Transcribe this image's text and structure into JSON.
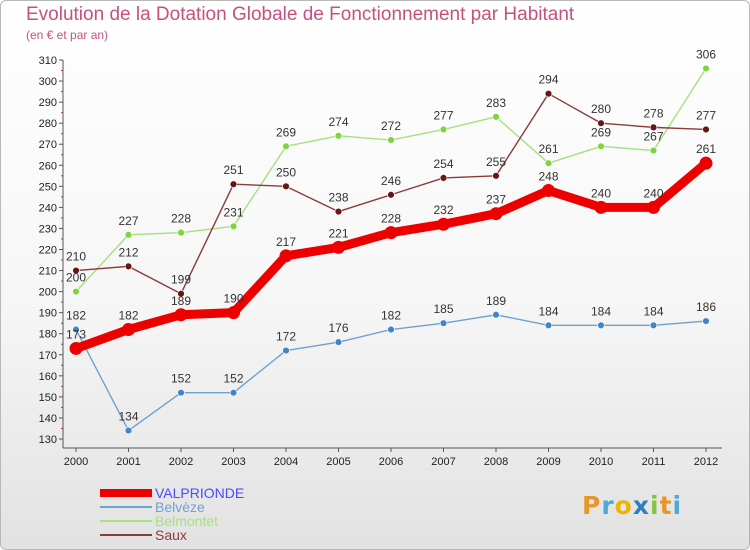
{
  "title": "Evolution de la Dotation Globale de Fonctionnement par Habitant",
  "subtitle": "(en € et par an)",
  "brand": "Proxiti",
  "chart_data": {
    "type": "line",
    "title": "Evolution de la Dotation Globale de Fonctionnement par Habitant",
    "subtitle": "(en € et par an)",
    "xlabel": "",
    "ylabel": "",
    "x": [
      "2000",
      "2001",
      "2002",
      "2003",
      "2004",
      "2005",
      "2006",
      "2007",
      "2008",
      "2009",
      "2010",
      "2011",
      "2012"
    ],
    "ylim": [
      130,
      310
    ],
    "yticks": [
      130,
      140,
      150,
      160,
      170,
      180,
      190,
      200,
      210,
      220,
      230,
      240,
      250,
      260,
      270,
      280,
      290,
      300,
      310
    ],
    "grid": false,
    "legend_position": "bottom-left",
    "series": [
      {
        "name": "VALPRIONDE",
        "color": "#ee0000",
        "marker": "#ee0000",
        "legend_color": "#4a4aff",
        "emphasis": true,
        "values": [
          173,
          182,
          189,
          190,
          217,
          221,
          228,
          232,
          237,
          248,
          240,
          240,
          261
        ]
      },
      {
        "name": "Belvèze",
        "color": "#6fa1cf",
        "marker": "#3f86c9",
        "legend_color": "#6fa1cf",
        "emphasis": false,
        "values": [
          182,
          134,
          152,
          152,
          172,
          176,
          182,
          185,
          189,
          184,
          184,
          184,
          186
        ]
      },
      {
        "name": "Belmontet",
        "color": "#a6e07f",
        "marker": "#7ed43f",
        "legend_color": "#a6e07f",
        "emphasis": false,
        "values": [
          200,
          227,
          228,
          231,
          269,
          274,
          272,
          277,
          283,
          261,
          269,
          267,
          306
        ]
      },
      {
        "name": "Saux",
        "color": "#8a3b3b",
        "marker": "#6a1414",
        "legend_color": "#8a3b3b",
        "emphasis": false,
        "values": [
          210,
          212,
          199,
          251,
          250,
          238,
          246,
          254,
          255,
          294,
          280,
          278,
          277
        ]
      }
    ]
  }
}
